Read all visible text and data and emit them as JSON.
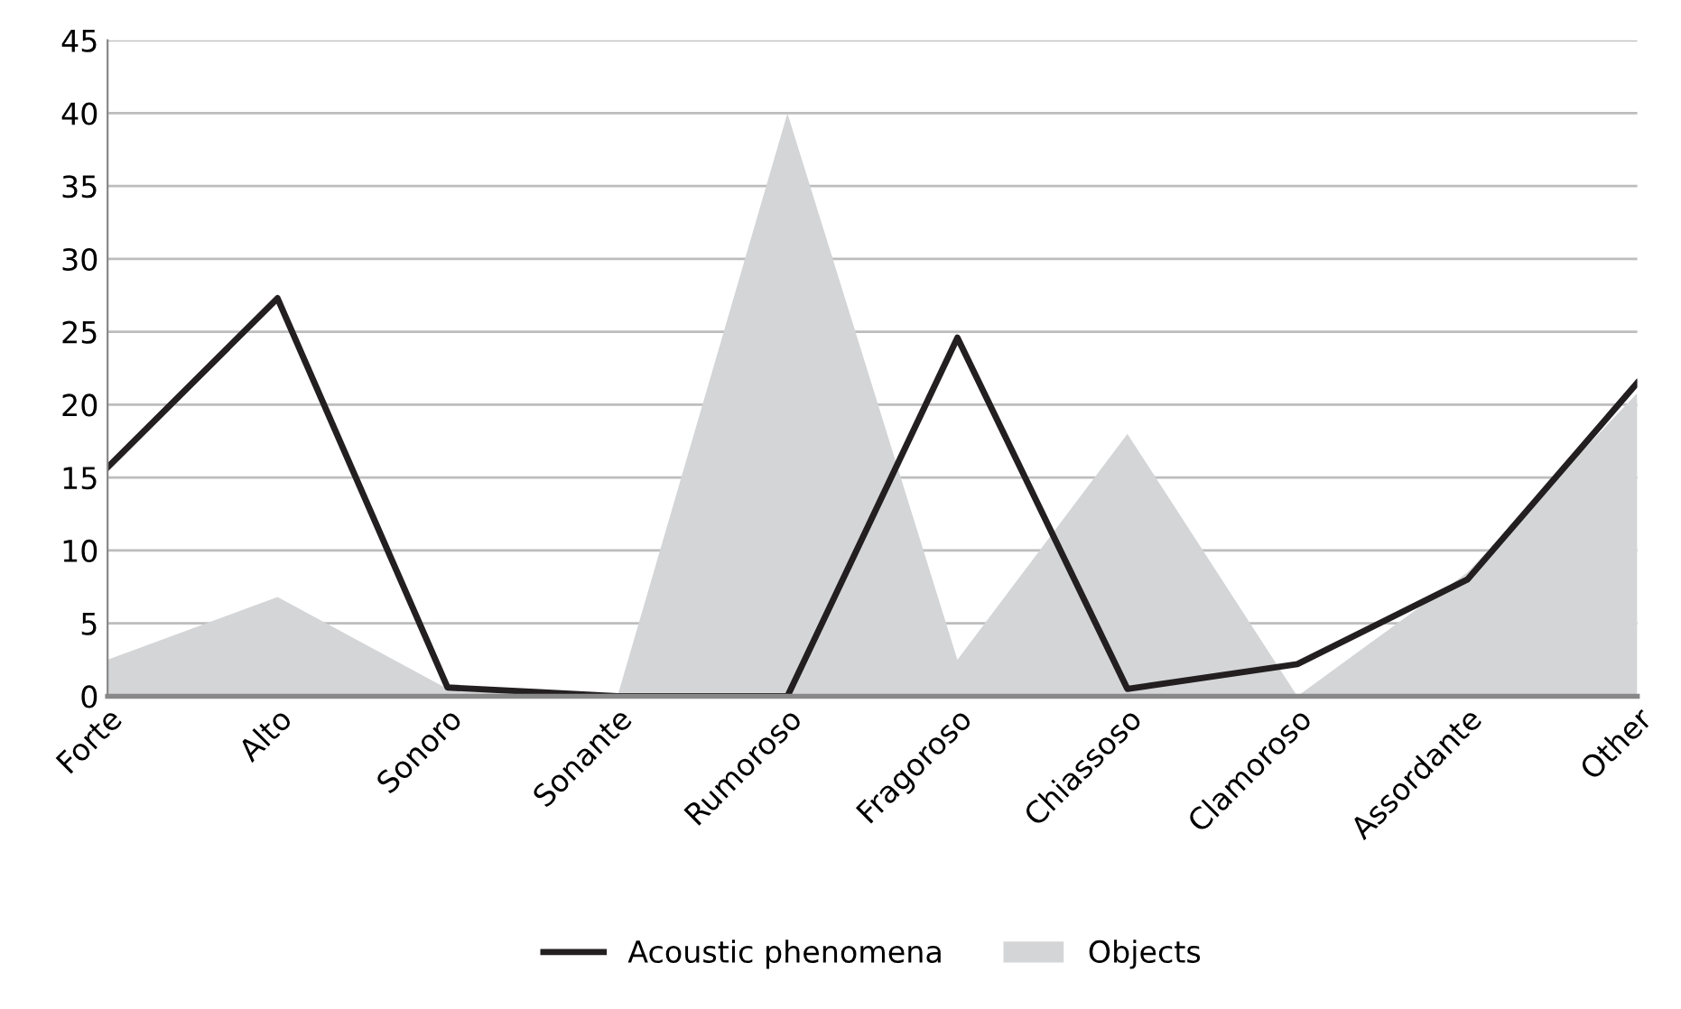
{
  "chart_data": {
    "type": "line",
    "categories": [
      "Forte",
      "Alto",
      "Sonoro",
      "Sonante",
      "Rumoroso",
      "Fragoroso",
      "Chiassoso",
      "Clamoroso",
      "Assordante",
      "Other"
    ],
    "series": [
      {
        "name": "Objects",
        "type": "area",
        "color": "#d4d5d7",
        "values": [
          2.5,
          6.8,
          0.5,
          0,
          40,
          2.5,
          18,
          0,
          8.5,
          20.8
        ]
      },
      {
        "name": "Acoustic phenomena",
        "color": "#231f20",
        "values": [
          15.7,
          27.3,
          0.6,
          0,
          0,
          24.6,
          0.5,
          2.2,
          8,
          21.5
        ]
      }
    ],
    "ylim": [
      0,
      45
    ],
    "yticks": [
      0,
      5,
      10,
      15,
      20,
      25,
      30,
      35,
      40,
      45
    ],
    "grid": "y",
    "legend": "bottom",
    "marker": "none",
    "line_style": "solid"
  }
}
